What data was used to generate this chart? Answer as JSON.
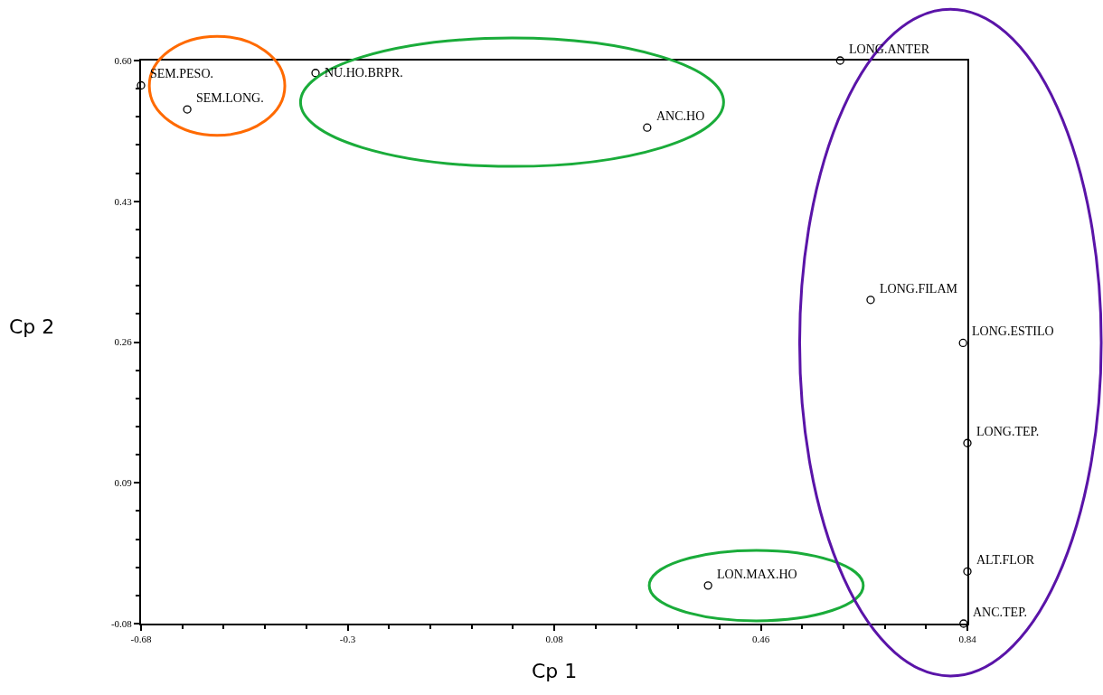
{
  "chart_data": {
    "type": "scatter",
    "xlabel": "Cp 1",
    "ylabel": "Cp 2",
    "x": [
      -0.68,
      -0.595,
      -0.359,
      0.251,
      0.606,
      0.662,
      0.832,
      0.84,
      0.84,
      0.833,
      0.363
    ],
    "values": [
      0.57,
      0.541,
      0.585,
      0.519,
      0.6,
      0.311,
      0.259,
      0.138,
      -0.017,
      -0.08,
      -0.034
    ],
    "color": "#000000",
    "marker": "circle",
    "xlim": [
      -0.68,
      0.84
    ],
    "xticks": [
      -0.68,
      -0.3,
      {
        "value": 0.08,
        "label": "0.08"
      },
      0.46,
      0.84
    ],
    "ylim": [
      -0.08,
      0.6
    ],
    "yticks": [
      -0.08,
      0.09,
      0.26,
      0.43,
      {
        "value": 0.6,
        "label": "0.60"
      }
    ],
    "annotations": [
      {
        "text": "SEM.PESO.",
        "x": -0.68,
        "y": 0.57
      },
      {
        "text": "SEM.LONG.",
        "x": -0.595,
        "y": 0.541
      },
      {
        "text": "NU.HO.BRPR.",
        "x": -0.359,
        "y": 0.585
      },
      {
        "text": "ANC.HO",
        "x": 0.251,
        "y": 0.519
      },
      {
        "text": "LONG.ANTER",
        "x": 0.606,
        "y": 0.6
      },
      {
        "text": "LONG.FILAM",
        "x": 0.662,
        "y": 0.311
      },
      {
        "text": "LONG.ESTILO",
        "x": 0.832,
        "y": 0.259
      },
      {
        "text": "LONG.TEP.",
        "x": 0.84,
        "y": 0.138
      },
      {
        "text": "ALT.FLOR",
        "x": 0.84,
        "y": -0.017
      },
      {
        "text": "ANC.TEP.",
        "x": 0.833,
        "y": -0.08
      },
      {
        "text": "LON.MAX.HO",
        "x": 0.363,
        "y": -0.034
      }
    ]
  }
}
